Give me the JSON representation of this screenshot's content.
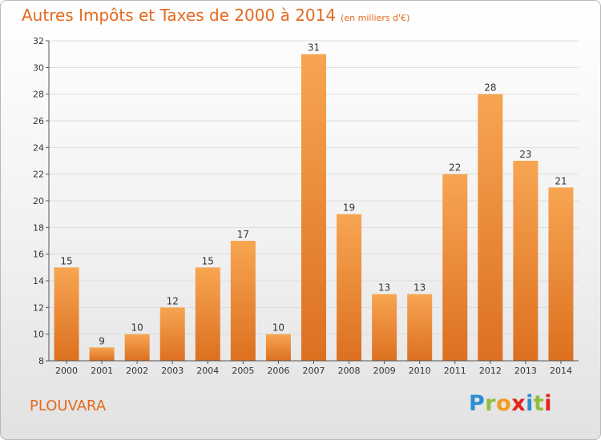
{
  "header": {
    "title": "Autres Impôts et Taxes de 2000 à 2014",
    "unit": "(en milliers d'€)"
  },
  "footer": {
    "commune": "PLOUVARA",
    "brand": {
      "letters": [
        "P",
        "r",
        "o",
        "x",
        "i",
        "t",
        "i"
      ],
      "colors": [
        "#2a8fd2",
        "#8fbf3a",
        "#f19a1e",
        "#e2231a",
        "#2a8fd2",
        "#8fbf3a",
        "#e2231a"
      ]
    }
  },
  "colors": {
    "bar_light": "#f7a552",
    "bar_dark": "#dc7020",
    "title": "#e36a1e",
    "axis": "#555555",
    "grid": "#dddddd"
  },
  "chart_data": {
    "type": "bar",
    "categories": [
      "2000",
      "2001",
      "2002",
      "2003",
      "2004",
      "2005",
      "2006",
      "2007",
      "2008",
      "2009",
      "2010",
      "2011",
      "2012",
      "2013",
      "2014"
    ],
    "values": [
      15,
      9,
      10,
      12,
      15,
      17,
      10,
      31,
      19,
      13,
      13,
      22,
      28,
      23,
      21
    ],
    "ylim": [
      8,
      32
    ],
    "yticks": [
      8,
      10,
      12,
      14,
      16,
      18,
      20,
      22,
      24,
      26,
      28,
      30,
      32
    ],
    "grid": true
  }
}
